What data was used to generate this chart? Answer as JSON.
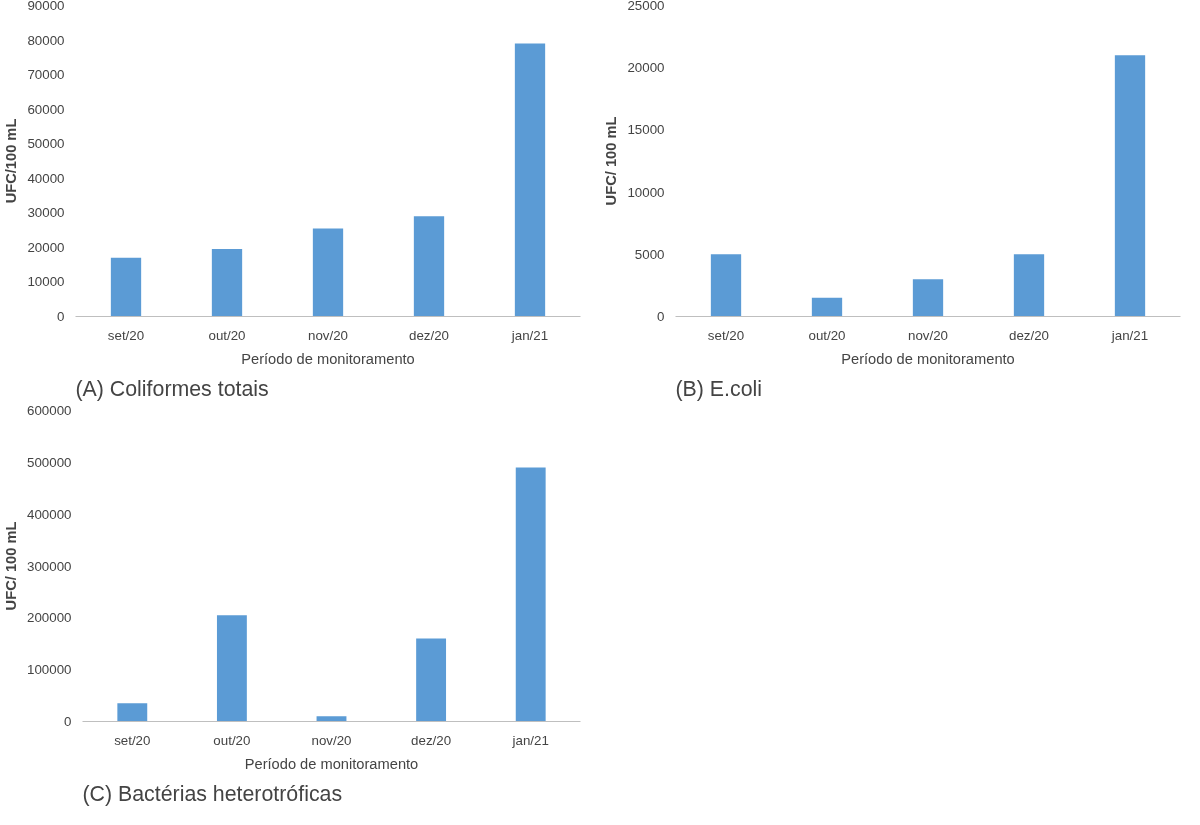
{
  "chart_data": [
    {
      "type": "bar",
      "categories": [
        "set/20",
        "out/20",
        "nov/20",
        "dez/20",
        "jan/21"
      ],
      "values": [
        17000,
        19500,
        25500,
        29000,
        79000
      ],
      "color": "#5b9bd5",
      "ylim": [
        0,
        90000
      ],
      "yticks": [
        0,
        10000,
        20000,
        30000,
        40000,
        50000,
        60000,
        70000,
        80000,
        90000
      ],
      "xlabel": "Período de monitoramento",
      "ylabel": "UFC/100 mL",
      "grid": false,
      "annotations": [
        "(A) Coliformes totais"
      ]
    },
    {
      "type": "bar",
      "categories": [
        "set/20",
        "out/20",
        "nov/20",
        "dez/20",
        "jan/21"
      ],
      "values": [
        5000,
        1500,
        3000,
        5000,
        21000
      ],
      "color": "#5b9bd5",
      "ylim": [
        0,
        25000
      ],
      "yticks": [
        0,
        5000,
        10000,
        15000,
        20000,
        25000
      ],
      "xlabel": "Período de monitoramento",
      "ylabel": "UFC/ 100 mL",
      "grid": false,
      "annotations": [
        "(B) E.coli"
      ]
    },
    {
      "type": "bar",
      "categories": [
        "set/20",
        "out/20",
        "nov/20",
        "dez/20",
        "jan/21"
      ],
      "values": [
        35000,
        205000,
        10000,
        160000,
        490000
      ],
      "color": "#5b9bd5",
      "ylim": [
        0,
        600000
      ],
      "yticks": [
        0,
        100000,
        200000,
        300000,
        400000,
        500000,
        600000
      ],
      "xlabel": "Período de monitoramento",
      "ylabel": "UFC/ 100 mL",
      "grid": false,
      "annotations": [
        "(C) Bactérias heterotróficas"
      ]
    }
  ]
}
